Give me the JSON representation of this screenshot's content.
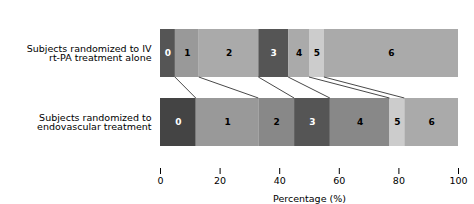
{
  "chart_data": {
    "type": "bar",
    "orientation": "horizontal",
    "stacked": true,
    "grid": false,
    "xlabel": "Percentage (%)",
    "xlim": [
      0,
      100
    ],
    "xticks": [
      0,
      20,
      40,
      60,
      80,
      100
    ],
    "categories": [
      "Subjects randomized to IV\nrt-PA treatment alone",
      "Subjects randomized to\nendovascular treatment"
    ],
    "series": [
      {
        "name": "0",
        "colors": [
          "#555555",
          "#444444"
        ],
        "values": [
          5,
          12
        ]
      },
      {
        "name": "1",
        "colors": [
          "#999999",
          "#999999"
        ],
        "values": [
          8,
          21
        ]
      },
      {
        "name": "2",
        "colors": [
          "#aaaaaa",
          "#888888"
        ],
        "values": [
          20,
          12
        ]
      },
      {
        "name": "3",
        "colors": [
          "#555555",
          "#555555"
        ],
        "values": [
          10,
          12
        ]
      },
      {
        "name": "4",
        "colors": [
          "#aaaaaa",
          "#888888"
        ],
        "values": [
          7,
          20
        ]
      },
      {
        "name": "5",
        "colors": [
          "#cccccc",
          "#cccccc"
        ],
        "values": [
          5,
          5
        ]
      },
      {
        "name": "6",
        "colors": [
          "#aaaaaa",
          "#aaaaaa"
        ],
        "values": [
          45,
          18
        ]
      }
    ]
  }
}
